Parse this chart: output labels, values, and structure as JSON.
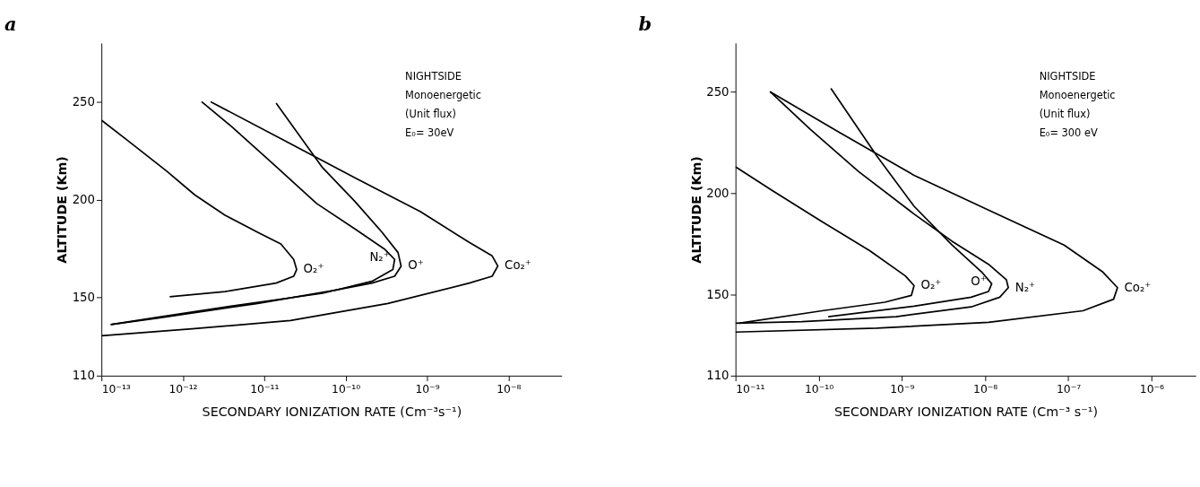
{
  "chart_data": [
    {
      "type": "line",
      "title": "a",
      "xlabel": "SECONDARY IONIZATION RATE (Cm⁻³s⁻¹)",
      "ylabel": "ALTITUDE (Km)",
      "log": "x",
      "grid": false,
      "xlim": [
        1e-13,
        4.5e-08
      ],
      "xticks": [
        {
          "value": 1e-13,
          "label": "10⁻¹³"
        },
        {
          "value": 1e-12,
          "label": "10⁻¹²"
        },
        {
          "value": 1e-11,
          "label": "10⁻¹¹"
        },
        {
          "value": 1e-10,
          "label": "10⁻¹⁰"
        },
        {
          "value": 1e-09,
          "label": "10⁻⁹"
        },
        {
          "value": 1e-08,
          "label": "10⁻⁸"
        }
      ],
      "ylim": [
        110,
        280
      ],
      "yticks": [
        110,
        150,
        200,
        250
      ],
      "annotations": [
        "NIGHTSIDE",
        "Monoenergetic",
        "(Unit flux)",
        "E₀= 30eV"
      ],
      "series": [
        {
          "name": "O₂⁺",
          "color": "#000000",
          "x": [
            1e-13,
            2.1e-13,
            6.3e-13,
            1.4e-12,
            3.3e-12,
            8.3e-12,
            1.6e-11,
            2.3e-11,
            2.5e-11,
            2.3e-11,
            1.4e-11,
            3.3e-12,
            6.9e-13
          ],
          "values": [
            240.6,
            230.2,
            214.6,
            202.4,
            192,
            183.3,
            177.3,
            169.4,
            164.2,
            160.8,
            157.3,
            153,
            150.3
          ]
        },
        {
          "name": "N₂⁺",
          "color": "#000000",
          "x": [
            1.7e-12,
            4e-12,
            1.3e-11,
            4.4e-11,
            1.3e-10,
            3e-10,
            4e-10,
            3.8e-10,
            2.1e-10,
            5.2e-11,
            3.3e-12,
            5.2e-13,
            1.3e-13
          ],
          "values": [
            250,
            237.2,
            218,
            198,
            185,
            174.7,
            169.4,
            164.2,
            158.2,
            152.1,
            145.1,
            140,
            136.1
          ]
        },
        {
          "name": "O⁺",
          "color": "#000000",
          "x": [
            1.4e-11,
            5.2e-11,
            1.3e-10,
            2.8e-10,
            4.4e-10,
            4.8e-10,
            4e-10,
            2.1e-10,
            7.6e-11,
            8.3e-12,
            5.2e-13,
            1.3e-13
          ],
          "values": [
            249.3,
            216.3,
            199,
            183.3,
            172.9,
            166,
            160.8,
            157.3,
            153.8,
            146.9,
            139.6,
            136.1
          ]
        },
        {
          "name": "Co₂⁺",
          "color": "#000000",
          "x": [
            2.2e-12,
            2.1e-11,
            1.3e-10,
            8.3e-10,
            3.3e-09,
            6.3e-09,
            7.4e-09,
            6.3e-09,
            3.3e-09,
            3.3e-10,
            2.1e-11,
            1.3e-12,
            1e-13
          ],
          "values": [
            250,
            228.5,
            211.1,
            193.8,
            178.1,
            171.2,
            166,
            160.8,
            157.3,
            146.9,
            138.2,
            133.9,
            130.4
          ]
        }
      ]
    },
    {
      "type": "line",
      "title": "b",
      "xlabel": "SECONDARY IONIZATION RATE (Cm⁻³ s⁻¹)",
      "ylabel": "ALTITUDE (Km)",
      "log": "x",
      "grid": false,
      "xlim": [
        1e-11,
        3.4e-06
      ],
      "xticks": [
        {
          "value": 1e-11,
          "label": "10⁻¹¹"
        },
        {
          "value": 1e-10,
          "label": "10⁻¹⁰"
        },
        {
          "value": 1e-09,
          "label": "10⁻⁹"
        },
        {
          "value": 1e-08,
          "label": "10⁻⁸"
        },
        {
          "value": 1e-07,
          "label": "10⁻⁷"
        },
        {
          "value": 1e-06,
          "label": "10⁻⁶"
        }
      ],
      "ylim": [
        110,
        274
      ],
      "yticks": [
        110,
        150,
        200,
        250
      ],
      "annotations": [
        "NIGHTSIDE",
        "Monoenergetic",
        "(Unit flux)",
        "E₀= 300 eV"
      ],
      "series": [
        {
          "name": "O₂⁺",
          "color": "#000000",
          "x": [
            1e-11,
            2.8e-11,
            1.1e-10,
            4.1e-10,
            1.1e-09,
            1.4e-09,
            1.3e-09,
            6.2e-10,
            1.1e-10,
            1.1e-11
          ],
          "values": [
            213,
            201.1,
            185.9,
            171.6,
            159.2,
            154.4,
            149.6,
            146.2,
            142,
            135.9
          ]
        },
        {
          "name": "O⁺",
          "color": "#000000",
          "x": [
            1.4e-10,
            5e-10,
            1.4e-09,
            4e-09,
            9.1e-09,
            1.2e-08,
            1.1e-08,
            6.8e-09,
            1.4e-09,
            1.3e-10
          ],
          "values": [
            251.7,
            218.3,
            193.5,
            174.4,
            161.1,
            155.3,
            151.5,
            148.7,
            144.3,
            139.1
          ]
        },
        {
          "name": "N₂⁺",
          "color": "#000000",
          "x": [
            2.6e-11,
            7.8e-11,
            3e-10,
            1.4e-09,
            4e-09,
            1.1e-08,
            1.8e-08,
            1.9e-08,
            1.5e-08,
            6.8e-09,
            8.5e-10,
            6.3e-11,
            1e-11
          ],
          "values": [
            250,
            231.7,
            210.7,
            189.7,
            176.3,
            164.9,
            157.3,
            153.4,
            148.7,
            143.9,
            139.1,
            136.6,
            135.9
          ]
        },
        {
          "name": "Co₂⁺",
          "color": "#000000",
          "x": [
            2.6e-11,
            1.8e-10,
            1.4e-09,
            1.1e-08,
            8.9e-08,
            2.6e-07,
            3.9e-07,
            3.5e-07,
            1.5e-07,
            1.1e-08,
            5e-10,
            1e-11
          ],
          "values": [
            250,
            229.8,
            208.8,
            191.6,
            174.4,
            161.1,
            153.4,
            147.7,
            142,
            136.3,
            133.4,
            131.5
          ]
        }
      ]
    }
  ]
}
